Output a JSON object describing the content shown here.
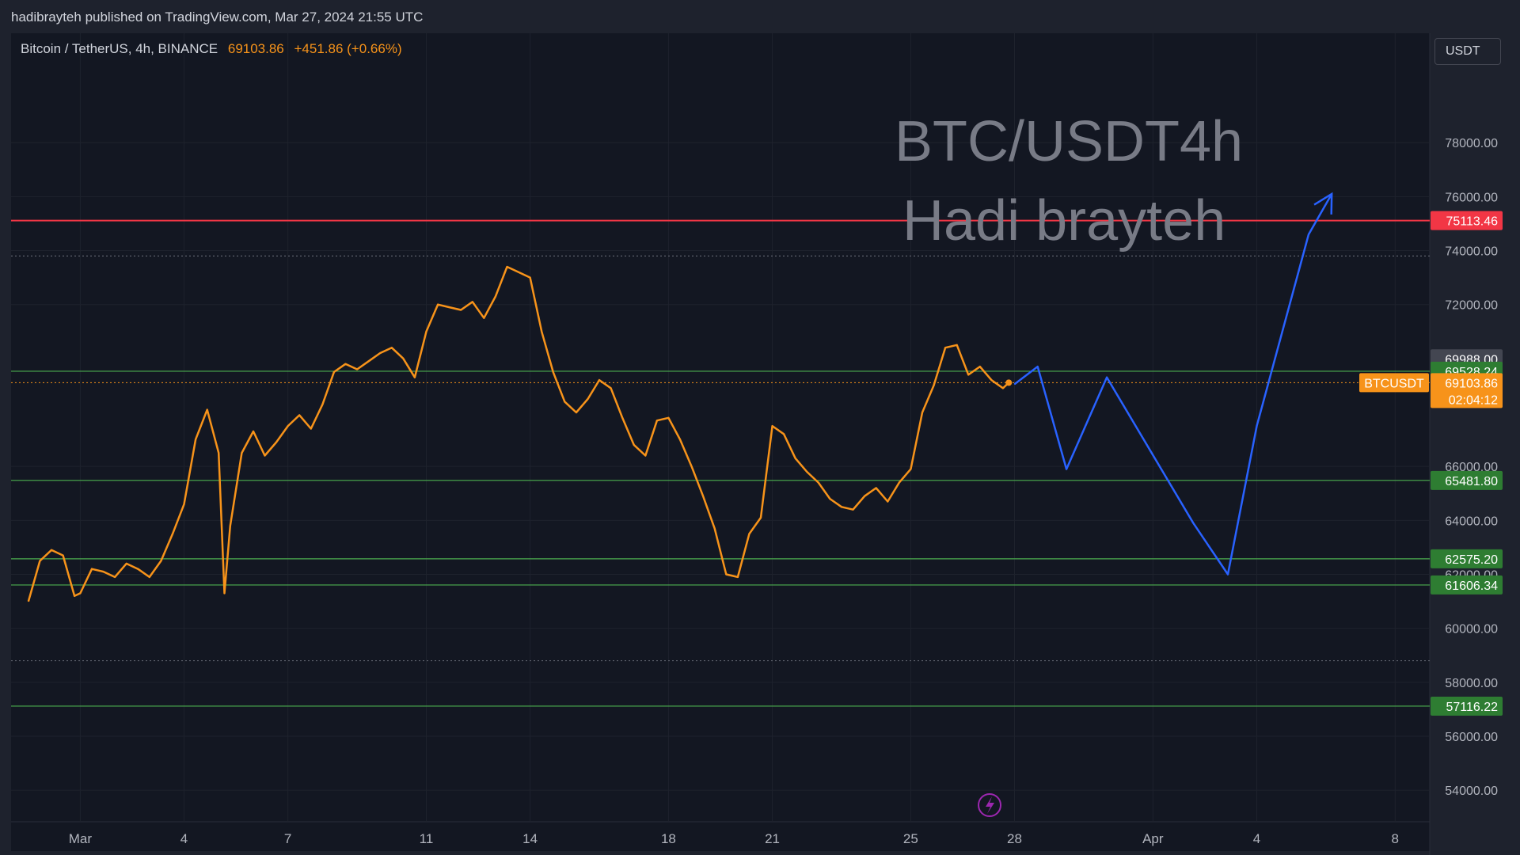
{
  "header": {
    "published": "hadibrayteh published on TradingView.com, Mar 27, 2024 21:55 UTC"
  },
  "legend": {
    "symbol": "Bitcoin / TetherUS, 4h, BINANCE",
    "price": "69103.86",
    "change": "+451.86 (+0.66%)"
  },
  "currency_button": "USDT",
  "watermark": {
    "line1": "BTC/USDT4h",
    "line2": "Hadi brayteh"
  },
  "colors": {
    "background": "#131722",
    "frame": "#1e222d",
    "price_line": "#f7931a",
    "projection": "#2962ff",
    "resistance": "#f23645",
    "support": "#4caf50",
    "text": "#d1d4dc"
  },
  "chart_data": {
    "type": "line",
    "title": "",
    "symbol_tag": "BTCUSDT",
    "countdown": "02:04:12",
    "last_price_label": "69103.86",
    "y_range": [
      53300,
      80500
    ],
    "y_ticks": [
      {
        "value": 78000,
        "label": "78000.00"
      },
      {
        "value": 76000,
        "label": "76000.00"
      },
      {
        "value": 74000,
        "label": "74000.00"
      },
      {
        "value": 72000,
        "label": "72000.00"
      },
      {
        "value": 66000,
        "label": "66000.00"
      },
      {
        "value": 64000,
        "label": "64000.00"
      },
      {
        "value": 62000,
        "label": "62000.00"
      },
      {
        "value": 60000,
        "label": "60000.00"
      },
      {
        "value": 58000,
        "label": "58000.00"
      },
      {
        "value": 56000,
        "label": "56000.00"
      },
      {
        "value": 54000,
        "label": "54000.00"
      }
    ],
    "x_range": [
      "2024-02-28",
      "2024-04-09"
    ],
    "x_ticks": [
      {
        "date": "2024-03-01",
        "label": "Mar"
      },
      {
        "date": "2024-03-04",
        "label": "4"
      },
      {
        "date": "2024-03-07",
        "label": "7"
      },
      {
        "date": "2024-03-11",
        "label": "11"
      },
      {
        "date": "2024-03-14",
        "label": "14"
      },
      {
        "date": "2024-03-18",
        "label": "18"
      },
      {
        "date": "2024-03-21",
        "label": "21"
      },
      {
        "date": "2024-03-25",
        "label": "25"
      },
      {
        "date": "2024-03-28",
        "label": "28"
      },
      {
        "date": "2024-04-01",
        "label": "Apr"
      },
      {
        "date": "2024-04-04",
        "label": "4"
      },
      {
        "date": "2024-04-08",
        "label": "8"
      }
    ],
    "horizontal_levels": [
      {
        "value": 75113.46,
        "label": "75113.46",
        "kind": "resistance"
      },
      {
        "value": 69988.0,
        "label": "69988.00",
        "kind": "high_marker"
      },
      {
        "value": 69528.24,
        "label": "69528.24",
        "kind": "support"
      },
      {
        "value": 65481.8,
        "label": "65481.80",
        "kind": "support"
      },
      {
        "value": 62575.2,
        "label": "62575.20",
        "kind": "support"
      },
      {
        "value": 61606.34,
        "label": "61606.34",
        "kind": "support"
      },
      {
        "value": 57116.22,
        "label": "57116.22",
        "kind": "support"
      }
    ],
    "dotted_levels": [
      73800,
      58800
    ],
    "price_series": {
      "name": "BTCUSDT 4h close",
      "x": [
        "2024-02-28 12:00",
        "2024-02-28 20:00",
        "2024-02-29 04:00",
        "2024-02-29 12:00",
        "2024-02-29 20:00",
        "2024-03-01 00:00",
        "2024-03-01 08:00",
        "2024-03-01 16:00",
        "2024-03-02 00:00",
        "2024-03-02 08:00",
        "2024-03-02 16:00",
        "2024-03-03 00:00",
        "2024-03-03 08:00",
        "2024-03-03 16:00",
        "2024-03-04 00:00",
        "2024-03-04 08:00",
        "2024-03-04 16:00",
        "2024-03-05 00:00",
        "2024-03-05 04:00",
        "2024-03-05 08:00",
        "2024-03-05 16:00",
        "2024-03-06 00:00",
        "2024-03-06 08:00",
        "2024-03-06 16:00",
        "2024-03-07 00:00",
        "2024-03-07 08:00",
        "2024-03-07 16:00",
        "2024-03-08 00:00",
        "2024-03-08 08:00",
        "2024-03-08 16:00",
        "2024-03-09 00:00",
        "2024-03-09 08:00",
        "2024-03-09 16:00",
        "2024-03-10 00:00",
        "2024-03-10 08:00",
        "2024-03-10 16:00",
        "2024-03-11 00:00",
        "2024-03-11 08:00",
        "2024-03-11 16:00",
        "2024-03-12 00:00",
        "2024-03-12 08:00",
        "2024-03-12 16:00",
        "2024-03-13 00:00",
        "2024-03-13 08:00",
        "2024-03-13 16:00",
        "2024-03-14 00:00",
        "2024-03-14 08:00",
        "2024-03-14 16:00",
        "2024-03-15 00:00",
        "2024-03-15 08:00",
        "2024-03-15 16:00",
        "2024-03-16 00:00",
        "2024-03-16 08:00",
        "2024-03-16 16:00",
        "2024-03-17 00:00",
        "2024-03-17 08:00",
        "2024-03-17 16:00",
        "2024-03-18 00:00",
        "2024-03-18 08:00",
        "2024-03-18 16:00",
        "2024-03-19 00:00",
        "2024-03-19 08:00",
        "2024-03-19 16:00",
        "2024-03-20 00:00",
        "2024-03-20 08:00",
        "2024-03-20 16:00",
        "2024-03-21 00:00",
        "2024-03-21 08:00",
        "2024-03-21 16:00",
        "2024-03-22 00:00",
        "2024-03-22 08:00",
        "2024-03-22 16:00",
        "2024-03-23 00:00",
        "2024-03-23 08:00",
        "2024-03-23 16:00",
        "2024-03-24 00:00",
        "2024-03-24 08:00",
        "2024-03-24 16:00",
        "2024-03-25 00:00",
        "2024-03-25 08:00",
        "2024-03-25 16:00",
        "2024-03-26 00:00",
        "2024-03-26 08:00",
        "2024-03-26 16:00",
        "2024-03-27 00:00",
        "2024-03-27 08:00",
        "2024-03-27 16:00",
        "2024-03-27 20:00"
      ],
      "values": [
        61000,
        62500,
        62900,
        62700,
        61200,
        61300,
        62200,
        62100,
        61900,
        62400,
        62200,
        61900,
        62500,
        63500,
        64600,
        67000,
        68100,
        66500,
        61300,
        63800,
        66500,
        67300,
        66400,
        66900,
        67500,
        67900,
        67400,
        68300,
        69500,
        69800,
        69600,
        69900,
        70200,
        70400,
        70000,
        69300,
        71000,
        72000,
        71900,
        71800,
        72100,
        71500,
        72300,
        73400,
        73200,
        73000,
        71000,
        69500,
        68400,
        68000,
        68500,
        69200,
        68900,
        67800,
        66800,
        66400,
        67700,
        67800,
        67000,
        66000,
        64900,
        63700,
        62000,
        61900,
        63500,
        64100,
        67500,
        67200,
        66300,
        65800,
        65400,
        64800,
        64500,
        64400,
        64900,
        65200,
        64700,
        65400,
        65900,
        68000,
        69000,
        70400,
        70500,
        69400,
        69700,
        69200,
        68900,
        69104
      ]
    },
    "projection_series": {
      "name": "Projected path",
      "x": [
        "2024-03-28 00:00",
        "2024-03-28 16:00",
        "2024-03-29 12:00",
        "2024-03-30 16:00",
        "2024-04-02 04:00",
        "2024-04-03 04:00",
        "2024-04-04 00:00",
        "2024-04-05 12:00",
        "2024-04-06 04:00"
      ],
      "values": [
        69050,
        69700,
        65900,
        69300,
        63900,
        62000,
        67500,
        74600,
        76100
      ]
    }
  }
}
